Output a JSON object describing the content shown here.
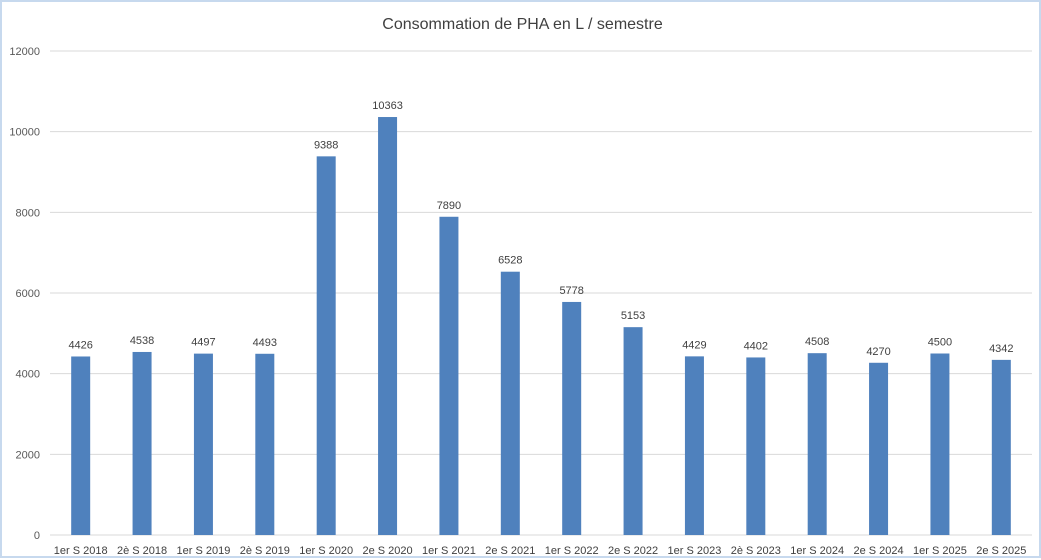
{
  "chart_data": {
    "type": "bar",
    "title": "Consommation de PHA en L / semestre",
    "xlabel": "",
    "ylabel": "",
    "ylim": [
      0,
      12000
    ],
    "yticks": [
      0,
      2000,
      4000,
      6000,
      8000,
      10000,
      12000
    ],
    "grid": true,
    "legend": "none",
    "bar_color": "#4f81bd",
    "categories": [
      "1er S 2018",
      "2è S 2018",
      "1er S 2019",
      "2è S 2019",
      "1er S 2020",
      "2e S 2020",
      "1er S 2021",
      "2e S 2021",
      "1er S 2022",
      "2e S 2022",
      "1er S 2023",
      "2è S 2023",
      "1er S 2024",
      "2e S 2024",
      "1er S 2025",
      "2e S 2025"
    ],
    "values": [
      4426,
      4538,
      4497,
      4493,
      9388,
      10363,
      7890,
      6528,
      5778,
      5153,
      4429,
      4402,
      4508,
      4270,
      4500,
      4342
    ]
  }
}
